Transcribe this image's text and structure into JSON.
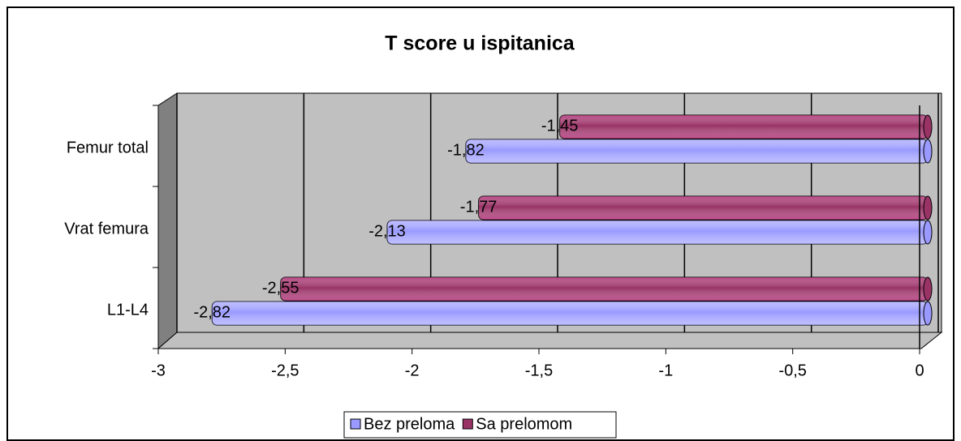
{
  "chart_data": {
    "type": "bar",
    "orientation": "horizontal",
    "title": "T score u ispitanica",
    "categories": [
      "L1-L4",
      "Vrat femura",
      "Femur total"
    ],
    "series": [
      {
        "name": "Bez preloma",
        "color": "#9999ff",
        "values": [
          -2.82,
          -2.13,
          -1.82
        ],
        "value_labels": [
          "-2,82",
          "-2,13",
          "-1,82"
        ]
      },
      {
        "name": "Sa prelomom",
        "color": "#993366",
        "values": [
          -2.55,
          -1.77,
          -1.45
        ],
        "value_labels": [
          "-2,55",
          "-1,77",
          "-1,45"
        ]
      }
    ],
    "xlim": [
      -3,
      0
    ],
    "xticks": [
      -3,
      {
        "value": -2.5,
        "label": "-2,5"
      },
      -2,
      {
        "value": -1.5,
        "label": "-1,5"
      },
      -1,
      {
        "value": -0.5,
        "label": "-0,5"
      },
      0
    ],
    "grid": true,
    "legend": "bottom"
  }
}
